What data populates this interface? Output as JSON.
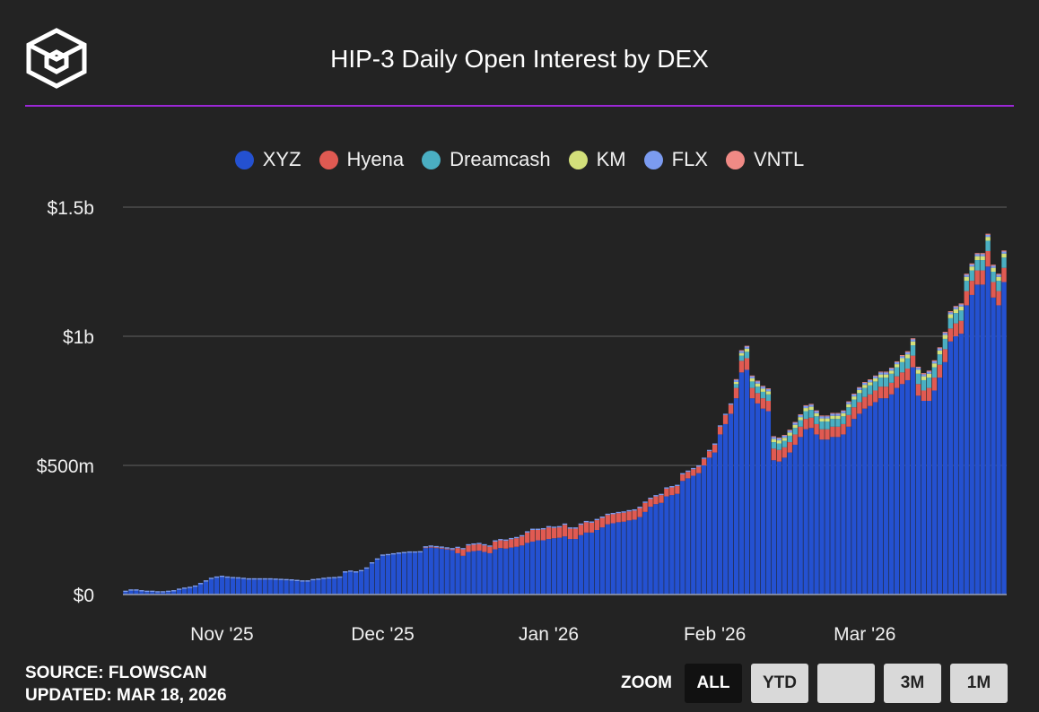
{
  "title": "HIP-3 Daily Open Interest by DEX",
  "colors": {
    "background": "#232323",
    "accent_rule": "#9b27d6",
    "grid": "#555555",
    "text": "#f0f0f0"
  },
  "legend": [
    {
      "label": "XYZ",
      "color": "#2451d1"
    },
    {
      "label": "Hyena",
      "color": "#e05a52"
    },
    {
      "label": "Dreamcash",
      "color": "#4aaec2"
    },
    {
      "label": "KM",
      "color": "#d3e07a"
    },
    {
      "label": "FLX",
      "color": "#7b9bf0"
    },
    {
      "label": "VNTL",
      "color": "#f08a85"
    }
  ],
  "footer": {
    "source": "SOURCE: FLOWSCAN",
    "updated": "UPDATED: MAR 18, 2026"
  },
  "zoom": {
    "label": "ZOOM",
    "buttons": [
      "ALL",
      "YTD",
      "",
      "3M",
      "1M"
    ],
    "active": "ALL"
  },
  "chart_data": {
    "type": "bar",
    "stacked": true,
    "title": "HIP-3 Daily Open Interest by DEX",
    "unit": "USD millions",
    "ylim": [
      0,
      1500
    ],
    "yticks": [
      {
        "value": 0,
        "label": "$0"
      },
      {
        "value": 500,
        "label": "$500m"
      },
      {
        "value": 1000,
        "label": "$1b"
      },
      {
        "value": 1500,
        "label": "$1.5b"
      }
    ],
    "x_start_index": 0,
    "xticks": [
      {
        "index": 18,
        "label": "Nov '25"
      },
      {
        "index": 48,
        "label": "Dec '25"
      },
      {
        "index": 79,
        "label": "Jan '26"
      },
      {
        "index": 110,
        "label": "Feb '26"
      },
      {
        "index": 138,
        "label": "Mar '26"
      }
    ],
    "series": [
      {
        "name": "XYZ",
        "color": "#2451d1",
        "values": [
          10,
          15,
          15,
          12,
          10,
          10,
          8,
          8,
          10,
          12,
          18,
          22,
          25,
          30,
          40,
          50,
          60,
          65,
          68,
          65,
          63,
          62,
          60,
          58,
          58,
          58,
          58,
          58,
          57,
          56,
          55,
          54,
          52,
          50,
          50,
          55,
          57,
          60,
          62,
          63,
          65,
          85,
          88,
          85,
          90,
          100,
          120,
          135,
          150,
          152,
          155,
          158,
          160,
          162,
          162,
          163,
          180,
          182,
          180,
          178,
          175,
          172,
          160,
          150,
          165,
          168,
          170,
          165,
          160,
          175,
          180,
          178,
          182,
          185,
          190,
          200,
          205,
          210,
          210,
          215,
          218,
          220,
          225,
          215,
          215,
          230,
          240,
          240,
          250,
          260,
          272,
          276,
          280,
          282,
          287,
          290,
          300,
          320,
          340,
          350,
          355,
          380,
          385,
          390,
          440,
          450,
          460,
          470,
          500,
          530,
          550,
          620,
          660,
          700,
          760,
          860,
          870,
          760,
          740,
          720,
          710,
          520,
          515,
          530,
          550,
          580,
          610,
          640,
          645,
          620,
          600,
          600,
          610,
          610,
          620,
          650,
          680,
          700,
          720,
          730,
          745,
          760,
          760,
          775,
          800,
          815,
          830,
          880,
          770,
          750,
          750,
          790,
          840,
          900,
          980,
          1000,
          1010,
          1120,
          1160,
          1200,
          1200,
          1270,
          1150,
          1120,
          1210
        ]
      },
      {
        "name": "Hyena",
        "color": "#e05a52",
        "values": [
          0,
          0,
          0,
          0,
          0,
          0,
          0,
          0,
          0,
          0,
          0,
          0,
          0,
          0,
          0,
          0,
          0,
          0,
          0,
          0,
          0,
          0,
          0,
          0,
          0,
          0,
          0,
          0,
          0,
          0,
          0,
          0,
          0,
          0,
          0,
          0,
          0,
          0,
          0,
          0,
          0,
          0,
          0,
          0,
          0,
          0,
          0,
          0,
          0,
          0,
          0,
          0,
          0,
          0,
          0,
          0,
          2,
          3,
          3,
          3,
          3,
          3,
          20,
          25,
          25,
          25,
          25,
          25,
          25,
          30,
          30,
          30,
          32,
          33,
          35,
          40,
          45,
          40,
          42,
          45,
          40,
          40,
          45,
          40,
          40,
          40,
          40,
          38,
          38,
          37,
          36,
          35,
          35,
          35,
          35,
          35,
          35,
          35,
          30,
          30,
          30,
          30,
          30,
          30,
          25,
          25,
          25,
          25,
          25,
          25,
          30,
          30,
          35,
          35,
          40,
          45,
          45,
          40,
          40,
          40,
          40,
          45,
          45,
          40,
          40,
          40,
          40,
          40,
          40,
          40,
          40,
          40,
          40,
          40,
          40,
          45,
          45,
          45,
          45,
          45,
          45,
          45,
          45,
          45,
          45,
          45,
          45,
          45,
          45,
          40,
          50,
          50,
          50,
          50,
          50,
          50,
          50,
          55,
          55,
          55,
          55,
          60,
          60,
          55,
          55
        ]
      },
      {
        "name": "Dreamcash",
        "color": "#4aaec2",
        "values": [
          0,
          0,
          0,
          0,
          0,
          0,
          0,
          0,
          0,
          0,
          0,
          0,
          0,
          0,
          0,
          0,
          0,
          0,
          0,
          0,
          0,
          0,
          0,
          0,
          0,
          0,
          0,
          0,
          0,
          0,
          0,
          0,
          0,
          0,
          0,
          0,
          0,
          0,
          0,
          0,
          0,
          0,
          0,
          0,
          0,
          0,
          0,
          0,
          0,
          0,
          0,
          0,
          0,
          0,
          0,
          0,
          0,
          0,
          0,
          0,
          0,
          0,
          0,
          0,
          0,
          0,
          0,
          0,
          0,
          0,
          0,
          0,
          0,
          0,
          0,
          0,
          0,
          0,
          0,
          0,
          0,
          0,
          0,
          0,
          0,
          0,
          0,
          0,
          0,
          0,
          0,
          0,
          0,
          0,
          0,
          0,
          0,
          0,
          0,
          0,
          0,
          0,
          0,
          0,
          0,
          0,
          0,
          0,
          0,
          0,
          0,
          0,
          0,
          0,
          15,
          20,
          25,
          25,
          25,
          25,
          25,
          25,
          25,
          25,
          25,
          25,
          25,
          30,
          30,
          30,
          30,
          30,
          30,
          30,
          30,
          30,
          30,
          35,
          35,
          35,
          35,
          35,
          35,
          35,
          35,
          40,
          40,
          40,
          40,
          40,
          40,
          40,
          40,
          40,
          40,
          40,
          40,
          40,
          40,
          40,
          40,
          40,
          40,
          40,
          40
        ]
      },
      {
        "name": "KM",
        "color": "#d3e07a",
        "values": [
          0,
          0,
          0,
          0,
          0,
          0,
          0,
          0,
          0,
          0,
          0,
          0,
          0,
          0,
          0,
          0,
          0,
          0,
          0,
          0,
          0,
          0,
          0,
          0,
          0,
          0,
          0,
          0,
          0,
          0,
          0,
          0,
          0,
          0,
          0,
          0,
          0,
          0,
          0,
          0,
          0,
          0,
          0,
          0,
          0,
          0,
          0,
          0,
          0,
          0,
          0,
          0,
          0,
          0,
          0,
          0,
          0,
          0,
          0,
          0,
          0,
          0,
          0,
          0,
          0,
          0,
          0,
          0,
          0,
          0,
          0,
          0,
          0,
          0,
          0,
          0,
          0,
          0,
          0,
          0,
          0,
          0,
          0,
          0,
          0,
          0,
          0,
          0,
          0,
          0,
          0,
          0,
          0,
          0,
          0,
          0,
          0,
          0,
          0,
          0,
          0,
          0,
          0,
          0,
          0,
          0,
          0,
          0,
          0,
          0,
          0,
          0,
          0,
          0,
          8,
          10,
          12,
          12,
          12,
          12,
          12,
          12,
          12,
          12,
          12,
          12,
          12,
          12,
          12,
          12,
          12,
          12,
          12,
          12,
          12,
          12,
          12,
          12,
          12,
          12,
          12,
          12,
          12,
          12,
          12,
          15,
          15,
          15,
          15,
          15,
          15,
          15,
          15,
          15,
          15,
          15,
          15,
          15,
          15,
          15,
          15,
          15,
          15,
          15,
          15
        ]
      },
      {
        "name": "FLX",
        "color": "#7b9bf0",
        "values": [
          5,
          5,
          5,
          5,
          5,
          5,
          5,
          5,
          5,
          5,
          5,
          5,
          5,
          5,
          5,
          5,
          5,
          5,
          5,
          5,
          5,
          5,
          5,
          5,
          5,
          5,
          5,
          5,
          5,
          5,
          5,
          5,
          5,
          5,
          5,
          5,
          5,
          5,
          5,
          5,
          5,
          5,
          5,
          5,
          5,
          5,
          5,
          5,
          5,
          5,
          5,
          5,
          5,
          5,
          5,
          5,
          5,
          5,
          5,
          5,
          5,
          5,
          5,
          5,
          5,
          5,
          5,
          5,
          5,
          5,
          5,
          5,
          5,
          5,
          5,
          5,
          5,
          5,
          5,
          5,
          5,
          5,
          5,
          5,
          5,
          5,
          5,
          5,
          5,
          5,
          5,
          5,
          5,
          5,
          5,
          5,
          5,
          5,
          5,
          5,
          5,
          5,
          5,
          5,
          5,
          5,
          5,
          5,
          5,
          5,
          5,
          5,
          5,
          5,
          8,
          8,
          8,
          8,
          8,
          8,
          8,
          8,
          8,
          8,
          8,
          8,
          8,
          8,
          8,
          8,
          8,
          8,
          8,
          8,
          8,
          8,
          8,
          8,
          8,
          8,
          8,
          8,
          8,
          8,
          8,
          8,
          8,
          8,
          8,
          8,
          8,
          8,
          8,
          8,
          8,
          8,
          8,
          8,
          8,
          8,
          8,
          8,
          8,
          8,
          8
        ]
      },
      {
        "name": "VNTL",
        "color": "#f08a85",
        "values": [
          0,
          0,
          0,
          0,
          0,
          0,
          0,
          0,
          0,
          0,
          0,
          0,
          0,
          0,
          0,
          0,
          0,
          0,
          0,
          0,
          0,
          0,
          0,
          0,
          0,
          0,
          0,
          0,
          0,
          0,
          0,
          0,
          0,
          0,
          0,
          0,
          0,
          0,
          0,
          0,
          0,
          0,
          0,
          0,
          0,
          0,
          0,
          0,
          0,
          0,
          0,
          0,
          0,
          0,
          0,
          0,
          0,
          0,
          0,
          0,
          0,
          0,
          0,
          0,
          0,
          0,
          0,
          0,
          0,
          0,
          0,
          0,
          0,
          0,
          0,
          0,
          0,
          0,
          0,
          0,
          0,
          0,
          0,
          0,
          0,
          0,
          0,
          0,
          0,
          0,
          0,
          0,
          0,
          0,
          0,
          0,
          0,
          0,
          0,
          0,
          0,
          0,
          0,
          0,
          0,
          0,
          0,
          0,
          0,
          0,
          0,
          0,
          0,
          0,
          3,
          3,
          3,
          3,
          3,
          3,
          3,
          3,
          3,
          3,
          3,
          3,
          3,
          3,
          3,
          3,
          3,
          3,
          3,
          3,
          3,
          3,
          3,
          3,
          3,
          3,
          3,
          3,
          3,
          3,
          3,
          4,
          4,
          4,
          4,
          4,
          4,
          4,
          4,
          4,
          4,
          4,
          4,
          4,
          4,
          4,
          4,
          4,
          4,
          4,
          4
        ]
      }
    ]
  }
}
